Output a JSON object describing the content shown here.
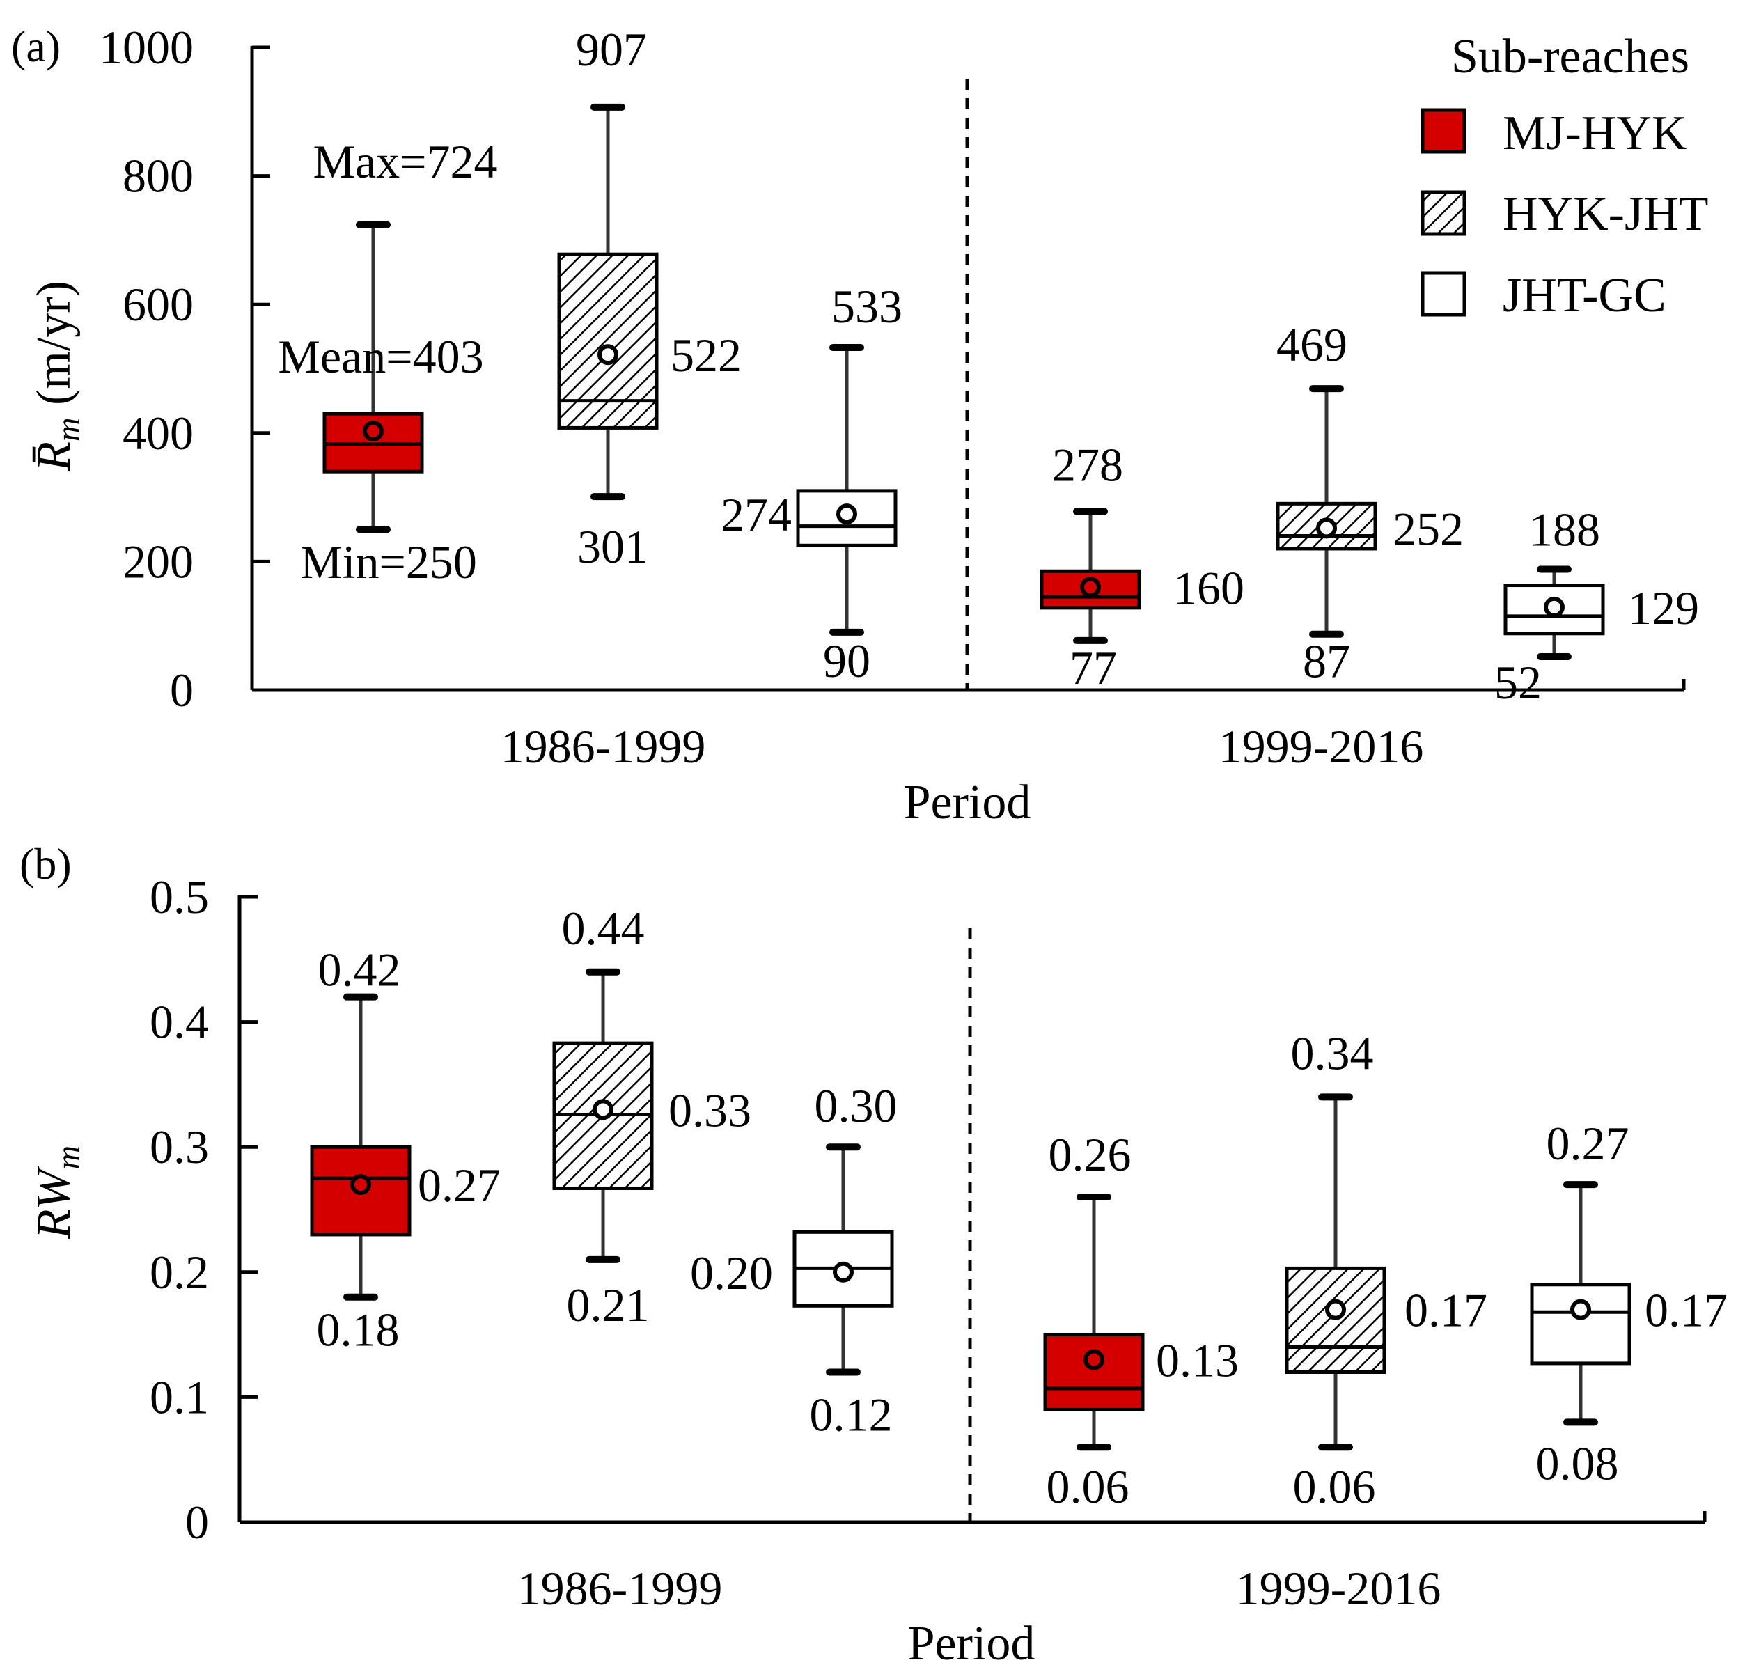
{
  "chart_data": [
    {
      "type": "box",
      "panel_label": "(a)",
      "ylabel": "R̄m (m/yr)",
      "ylabel_main": "R̄",
      "ylabel_sub": "m",
      "ylabel_unit": " (m/yr)",
      "xlabel": "Period",
      "ylim": [
        0,
        1000
      ],
      "yticks": [
        "0",
        "200",
        "400",
        "600",
        "800",
        "1000"
      ],
      "ytick_values": [
        0,
        200,
        400,
        600,
        800,
        1000
      ],
      "categories": [
        "1986-1999",
        "1999-2016"
      ],
      "legend": {
        "title": "Sub-reaches",
        "position": "top-right",
        "entries": [
          "MJ-HYK",
          "HYK-JHT",
          "JHT-GC"
        ]
      },
      "series": [
        {
          "name": "MJ-HYK",
          "boxes": [
            {
              "period": "1986-1999",
              "min": 250,
              "q1": 340,
              "median": 383,
              "q3": 430,
              "max": 724,
              "mean": 403,
              "labels": {
                "max": "Max=724",
                "mean": "Mean=403",
                "min": "Min=250"
              }
            },
            {
              "period": "1999-2016",
              "min": 77,
              "q1": 128,
              "median": 145,
              "q3": 185,
              "max": 278,
              "mean": 160,
              "labels": {
                "max": "278",
                "mean": "160",
                "min": "77"
              }
            }
          ]
        },
        {
          "name": "HYK-JHT",
          "boxes": [
            {
              "period": "1986-1999",
              "min": 301,
              "q1": 408,
              "median": 450,
              "q3": 678,
              "max": 907,
              "mean": 522,
              "labels": {
                "max": "907",
                "mean": "522",
                "min": "301"
              }
            },
            {
              "period": "1999-2016",
              "min": 87,
              "q1": 220,
              "median": 240,
              "q3": 290,
              "max": 469,
              "mean": 252,
              "labels": {
                "max": "469",
                "mean": "252",
                "min": "87"
              }
            }
          ]
        },
        {
          "name": "JHT-GC",
          "boxes": [
            {
              "period": "1986-1999",
              "min": 90,
              "q1": 225,
              "median": 255,
              "q3": 310,
              "max": 533,
              "mean": 274,
              "labels": {
                "max": "533",
                "mean": "274",
                "min": "90"
              }
            },
            {
              "period": "1999-2016",
              "min": 52,
              "q1": 88,
              "median": 115,
              "q3": 163,
              "max": 188,
              "mean": 129,
              "labels": {
                "max": "188",
                "mean": "129",
                "min": "52"
              }
            }
          ]
        }
      ]
    },
    {
      "type": "box",
      "panel_label": "(b)",
      "ylabel": "RWm",
      "ylabel_main": "RW",
      "ylabel_sub": "m",
      "xlabel": "Period",
      "ylim": [
        0,
        0.5
      ],
      "yticks": [
        "0",
        "0.1",
        "0.2",
        "0.3",
        "0.4",
        "0.5"
      ],
      "ytick_values": [
        0,
        0.1,
        0.2,
        0.3,
        0.4,
        0.5
      ],
      "categories": [
        "1986-1999",
        "1999-2016"
      ],
      "series": [
        {
          "name": "MJ-HYK",
          "boxes": [
            {
              "period": "1986-1999",
              "min": 0.18,
              "q1": 0.23,
              "median": 0.275,
              "q3": 0.3,
              "max": 0.42,
              "mean": 0.27,
              "labels": {
                "max": "0.42",
                "mean": "0.27",
                "min": "0.18"
              }
            },
            {
              "period": "1999-2016",
              "min": 0.06,
              "q1": 0.09,
              "median": 0.107,
              "q3": 0.15,
              "max": 0.26,
              "mean": 0.13,
              "labels": {
                "max": "0.26",
                "mean": "0.13",
                "min": "0.06"
              }
            }
          ]
        },
        {
          "name": "HYK-JHT",
          "boxes": [
            {
              "period": "1986-1999",
              "min": 0.21,
              "q1": 0.267,
              "median": 0.326,
              "q3": 0.383,
              "max": 0.44,
              "mean": 0.33,
              "labels": {
                "max": "0.44",
                "mean": "0.33",
                "min": "0.21"
              }
            },
            {
              "period": "1999-2016",
              "min": 0.06,
              "q1": 0.12,
              "median": 0.14,
              "q3": 0.203,
              "max": 0.34,
              "mean": 0.17,
              "labels": {
                "max": "0.34",
                "mean": "0.17",
                "min": "0.06"
              }
            }
          ]
        },
        {
          "name": "JHT-GC",
          "boxes": [
            {
              "period": "1986-1999",
              "min": 0.12,
              "q1": 0.173,
              "median": 0.203,
              "q3": 0.232,
              "max": 0.3,
              "mean": 0.2,
              "labels": {
                "max": "0.30",
                "mean": "0.20",
                "min": "0.12"
              }
            },
            {
              "period": "1999-2016",
              "min": 0.08,
              "q1": 0.127,
              "median": 0.168,
              "q3": 0.19,
              "max": 0.27,
              "mean": 0.17,
              "labels": {
                "max": "0.27",
                "mean": "0.17",
                "min": "0.08"
              }
            }
          ]
        }
      ]
    }
  ],
  "colors": {
    "mj_hyk_fill": "#d40000",
    "hyk_jht_fill": "#ffffff",
    "hyk_jht_hatch": "#000000",
    "jht_gc_fill": "#ffffff",
    "outline": "#000000",
    "whisker": "#333333"
  }
}
